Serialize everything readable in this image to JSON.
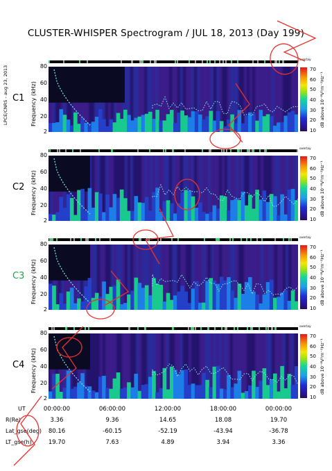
{
  "header": {
    "title": "CLUSTER-WHISPER Spectrogram / JUL 18, 2013 (Day 199)",
    "side_note": "LPCE/CNRS - aug 23, 2013"
  },
  "panels": [
    {
      "label": "C1",
      "label_color": "#000000"
    },
    {
      "label": "C2",
      "label_color": "#000000"
    },
    {
      "label": "C3",
      "label_color": "#1fa34a"
    },
    {
      "label": "C4",
      "label_color": "#000000"
    }
  ],
  "axis": {
    "ylabel": "Frequency (kHz)",
    "yticks": [
      "2",
      "20",
      "40",
      "60",
      "80"
    ],
    "colorbar_label": "dB above 10⁻⁸V²m⁻²Hz⁻¹",
    "colorbar_ticks": [
      "10",
      "20",
      "30",
      "40",
      "50",
      "60",
      "70"
    ],
    "colorbar_mini_label": "overlay"
  },
  "ephemeris": {
    "rows": [
      {
        "label": "UT",
        "values": [
          "00:00:00",
          "06:00:00",
          "12:00:00",
          "18:00:00",
          "00:00:00"
        ]
      },
      {
        "label": "R(Re)",
        "values": [
          "3.36",
          "9.36",
          "14.65",
          "18.08",
          "19.70"
        ]
      },
      {
        "label": "Lat_gse(deg)",
        "values": [
          "80.16",
          "-60.15",
          "-52.19",
          "-43.94",
          "-36.78"
        ]
      },
      {
        "label": "LT_gse(h)",
        "values": [
          "19.70",
          "7.63",
          "4.89",
          "3.94",
          "3.36"
        ]
      }
    ]
  },
  "chart_data": [
    {
      "type": "heatmap",
      "panel": "C1",
      "x_range": [
        "00:00:00",
        "00:00:00"
      ],
      "ylabel": "Frequency (kHz)",
      "ylim": [
        2,
        80
      ],
      "colorbar_range": [
        10,
        70
      ],
      "colorbar_label": "dB above 10⁻⁸V²m⁻²Hz⁻¹"
    },
    {
      "type": "heatmap",
      "panel": "C2",
      "x_range": [
        "00:00:00",
        "00:00:00"
      ],
      "ylabel": "Frequency (kHz)",
      "ylim": [
        2,
        80
      ],
      "colorbar_range": [
        10,
        70
      ],
      "colorbar_label": "dB above 10⁻⁸V²m⁻²Hz⁻¹"
    },
    {
      "type": "heatmap",
      "panel": "C3",
      "x_range": [
        "00:00:00",
        "00:00:00"
      ],
      "ylabel": "Frequency (kHz)",
      "ylim": [
        2,
        80
      ],
      "colorbar_range": [
        10,
        70
      ],
      "colorbar_label": "dB above 10⁻⁸V²m⁻²Hz⁻¹"
    },
    {
      "type": "heatmap",
      "panel": "C4",
      "x_range": [
        "00:00:00",
        "00:00:00"
      ],
      "ylabel": "Frequency (kHz)",
      "ylim": [
        2,
        80
      ],
      "colorbar_range": [
        10,
        70
      ],
      "colorbar_label": "dB above 10⁻⁸V²m⁻²Hz⁻¹"
    }
  ]
}
